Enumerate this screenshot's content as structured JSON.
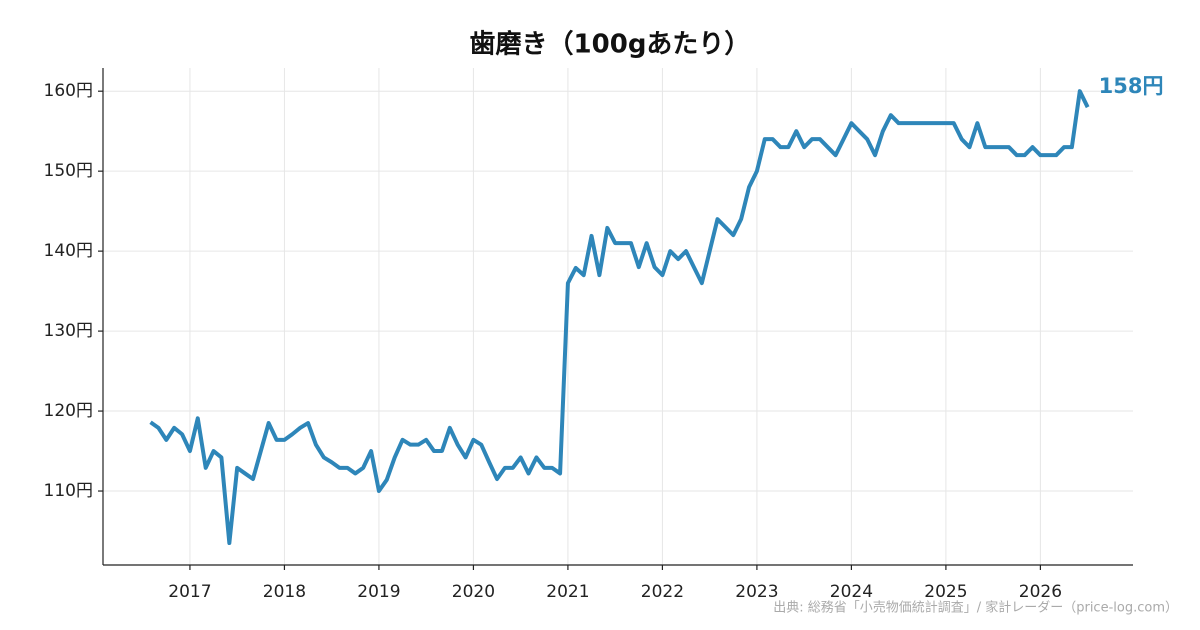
{
  "chart_data": {
    "type": "line",
    "title": "歯磨き（100gあたり）",
    "source": "出典: 総務省「小売物価統計調査」/ 家計レーダー（price-log.com）",
    "end_label": "158円",
    "xlim": [
      2016.08,
      2026.98
    ],
    "xticks": [
      2017,
      2018,
      2019,
      2020,
      2021,
      2022,
      2023,
      2024,
      2025,
      2026
    ],
    "ylim": [
      100.75,
      162.9
    ],
    "yticks": [
      {
        "value": 110,
        "label": "110円"
      },
      {
        "value": 120,
        "label": "120円"
      },
      {
        "value": 130,
        "label": "130円"
      },
      {
        "value": 140,
        "label": "140円"
      },
      {
        "value": 150,
        "label": "150円"
      },
      {
        "value": 160,
        "label": "160円"
      }
    ],
    "grid": true,
    "color": "#2e86b9",
    "x": [
      2016.583,
      2016.667,
      2016.75,
      2016.833,
      2016.917,
      2017.0,
      2017.083,
      2017.167,
      2017.25,
      2017.333,
      2017.417,
      2017.5,
      2017.583,
      2017.667,
      2017.75,
      2017.833,
      2017.917,
      2018.0,
      2018.083,
      2018.167,
      2018.25,
      2018.333,
      2018.417,
      2018.5,
      2018.583,
      2018.667,
      2018.75,
      2018.833,
      2018.917,
      2019.0,
      2019.083,
      2019.167,
      2019.25,
      2019.333,
      2019.417,
      2019.5,
      2019.583,
      2019.667,
      2019.75,
      2019.833,
      2019.917,
      2020.0,
      2020.083,
      2020.167,
      2020.25,
      2020.333,
      2020.417,
      2020.5,
      2020.583,
      2020.667,
      2020.75,
      2020.833,
      2020.917,
      2021.0,
      2021.083,
      2021.167,
      2021.25,
      2021.333,
      2021.417,
      2021.5,
      2021.583,
      2021.667,
      2021.75,
      2021.833,
      2021.917,
      2022.0,
      2022.083,
      2022.167,
      2022.25,
      2022.333,
      2022.417,
      2022.5,
      2022.583,
      2022.667,
      2022.75,
      2022.833,
      2022.917,
      2023.0,
      2023.083,
      2023.167,
      2023.25,
      2023.333,
      2023.417,
      2023.5,
      2023.583,
      2023.667,
      2023.75,
      2023.833,
      2023.917,
      2024.0,
      2024.083,
      2024.167,
      2024.25,
      2024.333,
      2024.417,
      2024.5,
      2024.583,
      2024.667,
      2024.75,
      2024.833,
      2024.917,
      2025.0,
      2025.083,
      2025.167,
      2025.25,
      2025.333,
      2025.417,
      2025.5,
      2025.583,
      2025.667,
      2025.75,
      2025.833,
      2025.917,
      2026.0,
      2026.083,
      2026.167,
      2026.25,
      2026.333,
      2026.417,
      2026.5
    ],
    "values": [
      118.6,
      117.9,
      116.4,
      117.9,
      117.1,
      115,
      119.1,
      112.9,
      115,
      114.2,
      103.5,
      112.9,
      112.2,
      111.5,
      115,
      118.5,
      116.4,
      116.4,
      117.1,
      117.9,
      118.5,
      115.8,
      114.2,
      113.6,
      112.9,
      112.9,
      112.2,
      112.9,
      115,
      110,
      111.4,
      114.2,
      116.4,
      115.8,
      115.8,
      116.4,
      115,
      115,
      117.9,
      115.8,
      114.2,
      116.4,
      115.8,
      113.6,
      111.5,
      112.9,
      112.9,
      114.2,
      112.2,
      114.2,
      112.9,
      112.9,
      112.2,
      136,
      137.9,
      137,
      141.9,
      137,
      142.9,
      141,
      141,
      141,
      138,
      141,
      138,
      137,
      140,
      139,
      140,
      138,
      136,
      140,
      144,
      143,
      142,
      144,
      148,
      150,
      154,
      154,
      153,
      153,
      155,
      153,
      154,
      154,
      153,
      152,
      154,
      156,
      155,
      154,
      152,
      155,
      157,
      156,
      156,
      156,
      156,
      156,
      156,
      156,
      156,
      154,
      153,
      156,
      153,
      153,
      153,
      153,
      152,
      152,
      153,
      152,
      152,
      152,
      153,
      153,
      160,
      158
    ]
  }
}
